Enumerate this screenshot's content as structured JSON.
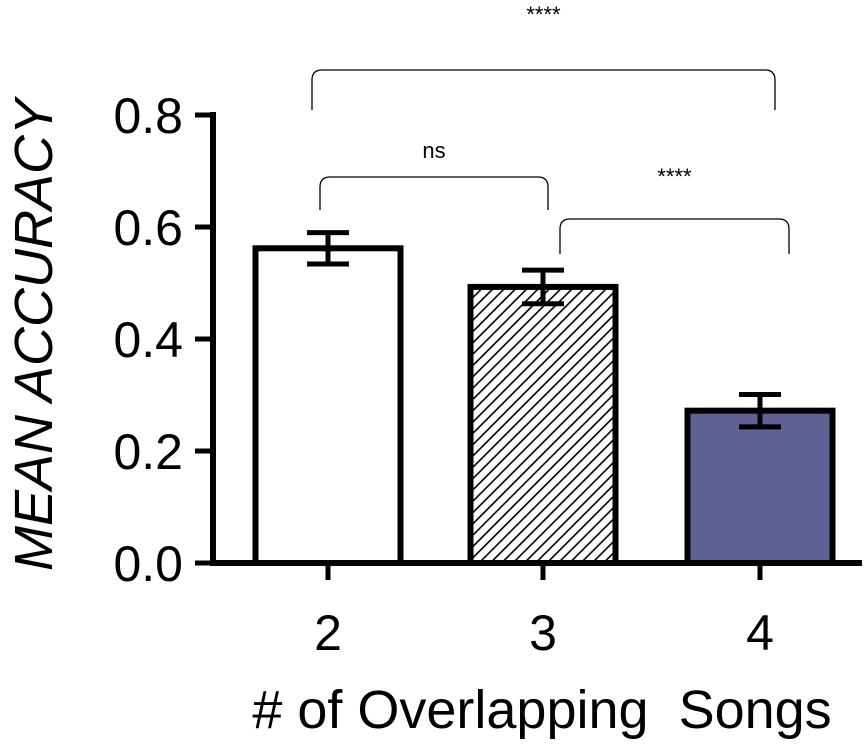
{
  "chart_data": {
    "type": "bar",
    "title": "",
    "xlabel": "# of Overlapping  Songs",
    "ylabel": "MEAN  ACCURACY",
    "categories": [
      "2",
      "3",
      "4"
    ],
    "values": [
      0.562,
      0.493,
      0.272
    ],
    "errors": [
      0.028,
      0.03,
      0.029
    ],
    "fills": [
      "#ffffff",
      "hatched",
      "#5e6193"
    ],
    "ylim": [
      0,
      0.8
    ],
    "yticks": [
      "0.0",
      "0.2",
      "0.4",
      "0.6",
      "0.8"
    ],
    "grid": false,
    "legend": "none",
    "annotations": [
      {
        "from": "2",
        "to": "4",
        "label": "****"
      },
      {
        "from": "2",
        "to": "3",
        "label": "ns"
      },
      {
        "from": "3",
        "to": "4",
        "label": "****"
      }
    ]
  },
  "colors": {
    "axis": "#000000",
    "bar4": "#5e6193"
  }
}
